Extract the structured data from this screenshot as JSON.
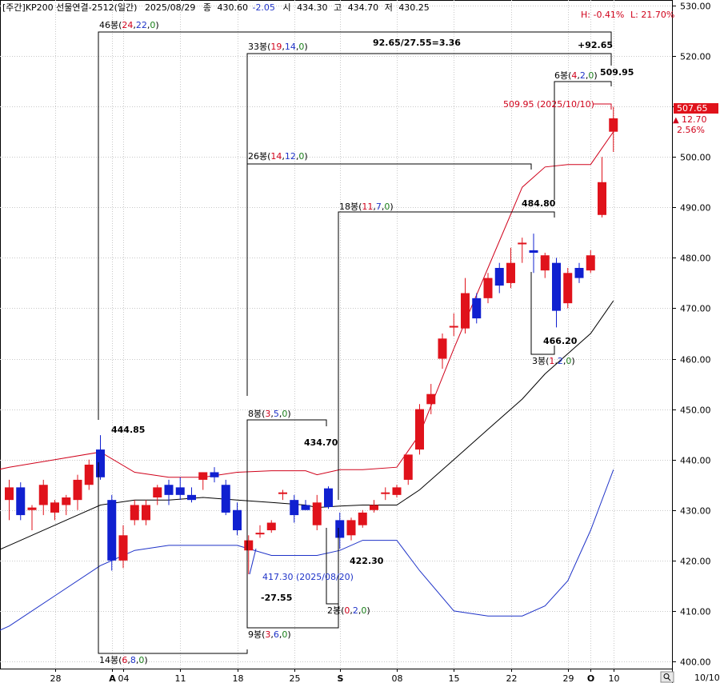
{
  "header": {
    "prefix": "[주간]",
    "instrument": "KP200 선물연결-2512(일간)",
    "date": "2025/08/29",
    "close_label": "종",
    "close": "430.60",
    "change": "-2.05",
    "open_label": "시",
    "open": "434.30",
    "high_label": "고",
    "high": "434.70",
    "low_label": "저",
    "low": "430.25",
    "h_stat": "H: -0.41%",
    "l_stat": "L: 21.70%"
  },
  "price_tag": {
    "price": "507.65",
    "change": "12.70",
    "pct": "2.56%",
    "arrow": "▲"
  },
  "annotations": {
    "b46": {
      "text": "46봉(",
      "a": "24",
      "b": "22",
      "c": "0",
      "close": ")"
    },
    "b33": {
      "text": "33봉(",
      "a": "19",
      "b": "14",
      "c": "0",
      "close": ")"
    },
    "ratio": "92.65/27.55=3.36",
    "plus": "+92.65",
    "b6": {
      "text": "6봉(",
      "a": "4",
      "b": "2",
      "c": "0",
      "close": ")"
    },
    "v50995": "509.95",
    "red_note": "509.95 (2025/10/10)",
    "b26": {
      "text": "26봉(",
      "a": "14",
      "b": "12",
      "c": "0",
      "close": ")"
    },
    "v48480": "484.80",
    "b18": {
      "text": "18봉(",
      "a": "11",
      "b": "7",
      "c": "0",
      "close": ")"
    },
    "v46620": "466.20",
    "b3": {
      "text": "3봉(",
      "a": "1",
      "b": "2",
      "c": "0",
      "close": ")"
    },
    "v44485": "444.85",
    "b8": {
      "text": "8봉(",
      "a": "3",
      "b": "5",
      "c": "0",
      "close": ")"
    },
    "v43470": "434.70",
    "v42230": "422.30",
    "low_note": "417.30 (2025/08/20)",
    "neg": "-27.55",
    "b2": {
      "text": "2봉(",
      "a": "0",
      "b": "2",
      "c": "0",
      "close": ")"
    },
    "b9": {
      "text": "9봉(",
      "a": "3",
      "b": "6",
      "c": "0",
      "close": ")"
    },
    "b14": {
      "text": "14봉(",
      "a": "6",
      "b": "8",
      "c": "0",
      "close": ")"
    }
  },
  "footer": {
    "date": "10/10",
    "icon": "magnifier-icon"
  },
  "colors": {
    "up": "#e0121b",
    "down": "#1020d0",
    "upper_band": "#d0021b",
    "lower_band": "#1f33c8",
    "mid_band": "#000000"
  },
  "chart_data": {
    "type": "candlestick",
    "ylim": [
      400,
      530
    ],
    "y_ticks": [
      "530.00",
      "520.00",
      "510.00",
      "500.00",
      "490.00",
      "480.00",
      "470.00",
      "460.00",
      "450.00",
      "440.00",
      "430.00",
      "420.00",
      "410.00",
      "400.00"
    ],
    "x_ticks": [
      {
        "label": "28",
        "i": 4,
        "bold": false
      },
      {
        "label": "A",
        "i": 9,
        "bold": true
      },
      {
        "label": "04",
        "i": 10,
        "bold": false
      },
      {
        "label": "11",
        "i": 15,
        "bold": false
      },
      {
        "label": "18",
        "i": 20,
        "bold": false
      },
      {
        "label": "25",
        "i": 25,
        "bold": false
      },
      {
        "label": "S",
        "i": 29,
        "bold": true
      },
      {
        "label": "08",
        "i": 34,
        "bold": false
      },
      {
        "label": "15",
        "i": 39,
        "bold": false
      },
      {
        "label": "22",
        "i": 44,
        "bold": false
      },
      {
        "label": "29",
        "i": 49,
        "bold": false
      },
      {
        "label": "O",
        "i": 51,
        "bold": true
      },
      {
        "label": "10",
        "i": 53,
        "bold": false
      }
    ],
    "candles": [
      {
        "o": 432.0,
        "h": 436.0,
        "l": 428.0,
        "c": 434.5
      },
      {
        "o": 434.5,
        "h": 435.5,
        "l": 428.0,
        "c": 429.0
      },
      {
        "o": 430.0,
        "h": 431.0,
        "l": 426.0,
        "c": 430.5
      },
      {
        "o": 431.0,
        "h": 436.0,
        "l": 429.0,
        "c": 435.0
      },
      {
        "o": 429.5,
        "h": 432.0,
        "l": 428.0,
        "c": 431.5
      },
      {
        "o": 431.0,
        "h": 433.0,
        "l": 429.0,
        "c": 432.5
      },
      {
        "o": 432.0,
        "h": 437.0,
        "l": 430.0,
        "c": 436.0
      },
      {
        "o": 435.0,
        "h": 440.0,
        "l": 434.0,
        "c": 439.0
      },
      {
        "o": 442.0,
        "h": 444.85,
        "l": 436.0,
        "c": 436.5
      },
      {
        "o": 432.0,
        "h": 433.0,
        "l": 418.0,
        "c": 420.0
      },
      {
        "o": 420.0,
        "h": 427.0,
        "l": 418.5,
        "c": 425.0
      },
      {
        "o": 428.0,
        "h": 432.0,
        "l": 427.0,
        "c": 431.0
      },
      {
        "o": 428.0,
        "h": 432.0,
        "l": 427.0,
        "c": 431.0
      },
      {
        "o": 432.5,
        "h": 435.0,
        "l": 431.0,
        "c": 434.5
      },
      {
        "o": 435.0,
        "h": 436.0,
        "l": 431.0,
        "c": 433.0
      },
      {
        "o": 434.5,
        "h": 436.5,
        "l": 432.0,
        "c": 433.0
      },
      {
        "o": 433.0,
        "h": 434.5,
        "l": 431.5,
        "c": 432.0
      },
      {
        "o": 436.0,
        "h": 437.5,
        "l": 434.0,
        "c": 437.5
      },
      {
        "o": 437.5,
        "h": 438.5,
        "l": 435.5,
        "c": 436.5
      },
      {
        "o": 435.0,
        "h": 436.0,
        "l": 429.0,
        "c": 429.5
      },
      {
        "o": 430.0,
        "h": 431.5,
        "l": 425.0,
        "c": 426.0
      },
      {
        "o": 422.0,
        "h": 425.0,
        "l": 417.3,
        "c": 424.0
      },
      {
        "o": 425.5,
        "h": 427.0,
        "l": 424.5,
        "c": 425.5
      },
      {
        "o": 426.0,
        "h": 428.0,
        "l": 425.5,
        "c": 427.5
      },
      {
        "o": 433.5,
        "h": 434.0,
        "l": 432.0,
        "c": 433.5
      },
      {
        "o": 432.0,
        "h": 433.0,
        "l": 427.5,
        "c": 429.0
      },
      {
        "o": 431.0,
        "h": 432.0,
        "l": 430.0,
        "c": 430.0
      },
      {
        "o": 427.0,
        "h": 433.0,
        "l": 426.0,
        "c": 431.5
      },
      {
        "o": 434.3,
        "h": 434.7,
        "l": 430.25,
        "c": 430.6
      },
      {
        "o": 428.0,
        "h": 429.5,
        "l": 422.3,
        "c": 424.5
      },
      {
        "o": 425.0,
        "h": 428.5,
        "l": 424.0,
        "c": 428.0
      },
      {
        "o": 427.0,
        "h": 430.0,
        "l": 426.5,
        "c": 429.5
      },
      {
        "o": 430.0,
        "h": 432.0,
        "l": 429.5,
        "c": 431.0
      },
      {
        "o": 433.5,
        "h": 434.5,
        "l": 432.0,
        "c": 433.5
      },
      {
        "o": 433.0,
        "h": 435.0,
        "l": 432.5,
        "c": 434.5
      },
      {
        "o": 436.0,
        "h": 441.0,
        "l": 435.0,
        "c": 441.0
      },
      {
        "o": 442.0,
        "h": 451.0,
        "l": 441.0,
        "c": 450.0
      },
      {
        "o": 451.0,
        "h": 455.0,
        "l": 449.0,
        "c": 453.0
      },
      {
        "o": 460.0,
        "h": 465.0,
        "l": 458.0,
        "c": 464.0
      },
      {
        "o": 466.5,
        "h": 469.0,
        "l": 464.5,
        "c": 466.5
      },
      {
        "o": 466.0,
        "h": 476.0,
        "l": 465.0,
        "c": 473.0
      },
      {
        "o": 472.0,
        "h": 473.0,
        "l": 467.0,
        "c": 468.0
      },
      {
        "o": 472.0,
        "h": 477.0,
        "l": 471.0,
        "c": 476.0
      },
      {
        "o": 478.0,
        "h": 479.0,
        "l": 473.0,
        "c": 474.5
      },
      {
        "o": 475.0,
        "h": 482.0,
        "l": 474.0,
        "c": 479.0
      },
      {
        "o": 483.0,
        "h": 484.0,
        "l": 479.0,
        "c": 483.0
      },
      {
        "o": 481.5,
        "h": 484.8,
        "l": 477.0,
        "c": 481.0
      },
      {
        "o": 477.5,
        "h": 481.0,
        "l": 476.0,
        "c": 480.5
      },
      {
        "o": 479.0,
        "h": 480.0,
        "l": 466.2,
        "c": 469.5
      },
      {
        "o": 471.0,
        "h": 478.0,
        "l": 470.0,
        "c": 477.0
      },
      {
        "o": 478.0,
        "h": 479.0,
        "l": 475.0,
        "c": 476.0
      },
      {
        "o": 477.5,
        "h": 481.5,
        "l": 477.0,
        "c": 480.5
      },
      {
        "o": 488.5,
        "h": 500.0,
        "l": 488.0,
        "c": 495.0
      },
      {
        "o": 505.0,
        "h": 509.95,
        "l": 501.0,
        "c": 507.65
      }
    ],
    "bands": {
      "x": [
        -1,
        0,
        4,
        8,
        11,
        14,
        17,
        20,
        23,
        26,
        27,
        29,
        31,
        34,
        36,
        39,
        42,
        45,
        47,
        49,
        51,
        53
      ],
      "upper": [
        438,
        438.5,
        440,
        441.5,
        437.5,
        436.5,
        436.5,
        437.5,
        437.8,
        437.8,
        437,
        438,
        438,
        438.5,
        445,
        462,
        478,
        494,
        498,
        498.5,
        498.5,
        505
      ],
      "middle": [
        422,
        423,
        427,
        431,
        432,
        432,
        432.5,
        432,
        431.5,
        431,
        430.5,
        430.8,
        431,
        431,
        434,
        440,
        446,
        452,
        457,
        461,
        465,
        471.5
      ],
      "lower": [
        406,
        407,
        413,
        419,
        422,
        423,
        423,
        423,
        421,
        421,
        421,
        422,
        424,
        424,
        418,
        410,
        409,
        409,
        411,
        416,
        426,
        438
      ]
    },
    "ranges": [
      {
        "label": "46봉",
        "bars": 46,
        "up": 24,
        "down": 22,
        "flat": 0
      },
      {
        "label": "33봉",
        "bars": 33,
        "up": 19,
        "down": 14,
        "flat": 0
      },
      {
        "label": "26봉",
        "bars": 26,
        "up": 14,
        "down": 12,
        "flat": 0
      },
      {
        "label": "18봉",
        "bars": 18,
        "up": 11,
        "down": 7,
        "flat": 0
      },
      {
        "label": "14봉",
        "bars": 14,
        "up": 6,
        "down": 8,
        "flat": 0
      },
      {
        "label": "9봉",
        "bars": 9,
        "up": 3,
        "down": 6,
        "flat": 0
      },
      {
        "label": "8봉",
        "bars": 8,
        "up": 3,
        "down": 5,
        "flat": 0
      },
      {
        "label": "6봉",
        "bars": 6,
        "up": 4,
        "down": 2,
        "flat": 0
      },
      {
        "label": "3봉",
        "bars": 3,
        "up": 1,
        "down": 2,
        "flat": 0
      },
      {
        "label": "2봉",
        "bars": 2,
        "up": 0,
        "down": 2,
        "flat": 0
      }
    ]
  }
}
